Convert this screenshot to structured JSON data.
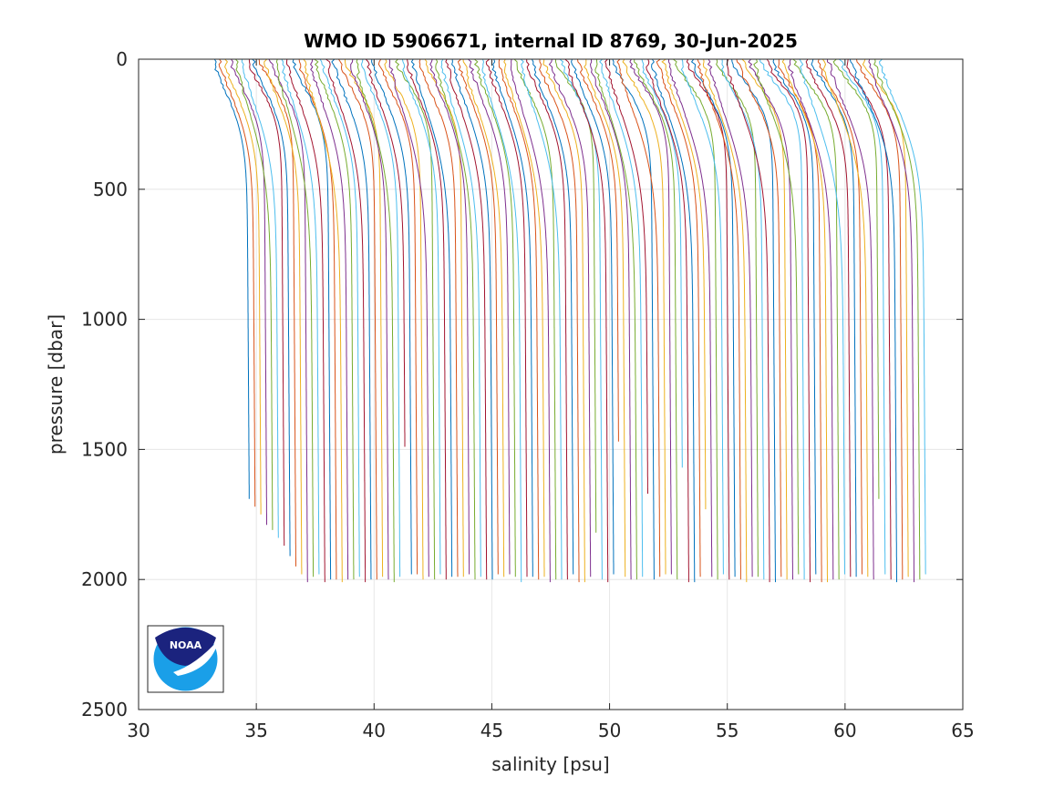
{
  "chart_data": {
    "type": "line",
    "title": "WMO ID 5906671, internal ID 8769, 30-Jun-2025",
    "xlabel": "salinity [psu]",
    "ylabel": "pressure [dbar]",
    "xlim": [
      30,
      65
    ],
    "ylim": [
      0,
      2500
    ],
    "y_reversed": true,
    "xticks": [
      "30",
      "35",
      "40",
      "45",
      "50",
      "55",
      "60",
      "65"
    ],
    "yticks": [
      "0",
      "500",
      "1000",
      "1500",
      "2000",
      "2500"
    ],
    "grid": true,
    "legend": "none",
    "profile_offset_psu": 0.25,
    "n_profiles": 118,
    "first_profile": {
      "surface_salinity": 33.2,
      "deep_salinity": 34.6,
      "max_pressure": 1680
    },
    "last_profile": {
      "surface_salinity": 61.5,
      "deep_salinity": 63.3,
      "max_pressure": 2000
    },
    "series_colors": [
      "#0072bd",
      "#d95319",
      "#edb120",
      "#7e2f8e",
      "#77ac30",
      "#4dbeee",
      "#a2142f"
    ],
    "logo": {
      "name": "noaa-logo",
      "text": "NOAA"
    }
  }
}
